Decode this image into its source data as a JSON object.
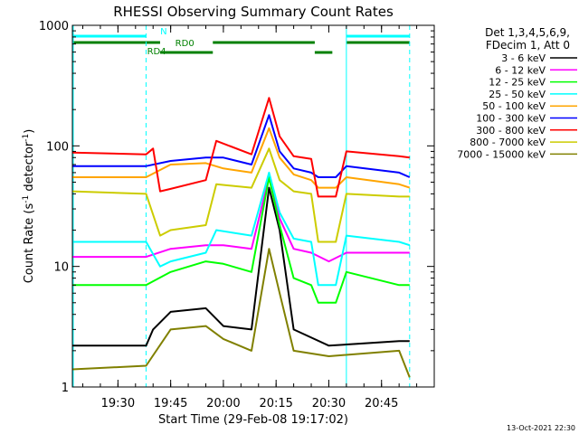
{
  "chart_data": {
    "type": "line",
    "title": "RHESSI Observing Summary Count Rates",
    "xlabel": "Start Time (29-Feb-08 19:17:02)",
    "ylabel_main": "Count Rate (s",
    "ylabel_sup1": "-1",
    "ylabel_mid": " detector",
    "ylabel_sup2": "-1",
    "ylabel_end": ")",
    "yscale": "log",
    "xlim": [
      "19:17:02",
      "21:00:00"
    ],
    "ylim": [
      1,
      1000
    ],
    "x_ticks": [
      "19:30",
      "19:45",
      "20:00",
      "20:15",
      "20:30",
      "20:45"
    ],
    "y_tick_labels": [
      "1",
      "10",
      "100",
      "1000"
    ],
    "legend": {
      "header1": "Det 1,3,4,5,6,9,",
      "header2": "FDecim 1, Att 0",
      "position": "right"
    },
    "series": [
      {
        "name": "3 - 6 keV",
        "color": "#000000",
        "points": [
          [
            "19:17",
            2.2
          ],
          [
            "19:38",
            2.2
          ],
          [
            "19:40",
            3.0
          ],
          [
            "19:45",
            4.2
          ],
          [
            "19:55",
            4.5
          ],
          [
            "20:00",
            3.2
          ],
          [
            "20:08",
            3.0
          ],
          [
            "20:13",
            45
          ],
          [
            "20:16",
            20
          ],
          [
            "20:20",
            3.0
          ],
          [
            "20:30",
            2.2
          ],
          [
            "20:50",
            2.4
          ],
          [
            "20:53",
            2.4
          ]
        ]
      },
      {
        "name": "6 - 12 keV",
        "color": "#ff00ff",
        "points": [
          [
            "19:17",
            12
          ],
          [
            "19:38",
            12
          ],
          [
            "19:45",
            14
          ],
          [
            "19:55",
            15
          ],
          [
            "20:00",
            15
          ],
          [
            "20:08",
            14
          ],
          [
            "20:13",
            55
          ],
          [
            "20:16",
            25
          ],
          [
            "20:20",
            14
          ],
          [
            "20:25",
            13
          ],
          [
            "20:30",
            11
          ],
          [
            "20:35",
            13
          ],
          [
            "20:50",
            13
          ],
          [
            "20:53",
            13
          ]
        ]
      },
      {
        "name": "12 - 25 keV",
        "color": "#00ff00",
        "points": [
          [
            "19:17",
            7
          ],
          [
            "19:38",
            7
          ],
          [
            "19:45",
            9
          ],
          [
            "19:55",
            11
          ],
          [
            "20:00",
            10.5
          ],
          [
            "20:08",
            9
          ],
          [
            "20:13",
            55
          ],
          [
            "20:16",
            22
          ],
          [
            "20:20",
            8
          ],
          [
            "20:25",
            7
          ],
          [
            "20:27",
            5
          ],
          [
            "20:32",
            5
          ],
          [
            "20:35",
            9
          ],
          [
            "20:50",
            7
          ],
          [
            "20:53",
            7
          ]
        ]
      },
      {
        "name": "25 - 50 keV",
        "color": "#00ffff",
        "points": [
          [
            "19:17",
            16
          ],
          [
            "19:38",
            16
          ],
          [
            "19:42",
            10
          ],
          [
            "19:45",
            11
          ],
          [
            "19:55",
            13
          ],
          [
            "19:58",
            20
          ],
          [
            "20:08",
            18
          ],
          [
            "20:13",
            60
          ],
          [
            "20:16",
            28
          ],
          [
            "20:20",
            17
          ],
          [
            "20:25",
            16
          ],
          [
            "20:27",
            7
          ],
          [
            "20:32",
            7
          ],
          [
            "20:35",
            18
          ],
          [
            "20:50",
            16
          ],
          [
            "20:53",
            15
          ]
        ]
      },
      {
        "name": "50 - 100 keV",
        "color": "#ffa500",
        "points": [
          [
            "19:17",
            55
          ],
          [
            "19:38",
            55
          ],
          [
            "19:45",
            70
          ],
          [
            "19:55",
            72
          ],
          [
            "20:00",
            65
          ],
          [
            "20:08",
            60
          ],
          [
            "20:13",
            140
          ],
          [
            "20:16",
            80
          ],
          [
            "20:20",
            58
          ],
          [
            "20:25",
            52
          ],
          [
            "20:27",
            45
          ],
          [
            "20:32",
            45
          ],
          [
            "20:35",
            55
          ],
          [
            "20:50",
            48
          ],
          [
            "20:53",
            45
          ]
        ]
      },
      {
        "name": "100 - 300 keV",
        "color": "#0000ff",
        "points": [
          [
            "19:17",
            68
          ],
          [
            "19:38",
            68
          ],
          [
            "19:45",
            75
          ],
          [
            "19:55",
            80
          ],
          [
            "20:00",
            80
          ],
          [
            "20:08",
            70
          ],
          [
            "20:13",
            180
          ],
          [
            "20:16",
            90
          ],
          [
            "20:20",
            65
          ],
          [
            "20:25",
            60
          ],
          [
            "20:27",
            55
          ],
          [
            "20:32",
            55
          ],
          [
            "20:35",
            68
          ],
          [
            "20:50",
            60
          ],
          [
            "20:53",
            55
          ]
        ]
      },
      {
        "name": "300 - 800 keV",
        "color": "#ff0000",
        "points": [
          [
            "19:17",
            88
          ],
          [
            "19:38",
            85
          ],
          [
            "19:40",
            95
          ],
          [
            "19:42",
            42
          ],
          [
            "19:45",
            44
          ],
          [
            "19:55",
            52
          ],
          [
            "19:58",
            110
          ],
          [
            "20:08",
            85
          ],
          [
            "20:13",
            250
          ],
          [
            "20:16",
            120
          ],
          [
            "20:20",
            82
          ],
          [
            "20:25",
            78
          ],
          [
            "20:27",
            38
          ],
          [
            "20:32",
            38
          ],
          [
            "20:35",
            90
          ],
          [
            "20:50",
            82
          ],
          [
            "20:53",
            80
          ]
        ]
      },
      {
        "name": "800 - 7000 keV",
        "color": "#cccc00",
        "points": [
          [
            "19:17",
            42
          ],
          [
            "19:38",
            40
          ],
          [
            "19:42",
            18
          ],
          [
            "19:45",
            20
          ],
          [
            "19:55",
            22
          ],
          [
            "19:58",
            48
          ],
          [
            "20:08",
            45
          ],
          [
            "20:13",
            95
          ],
          [
            "20:16",
            52
          ],
          [
            "20:20",
            42
          ],
          [
            "20:25",
            40
          ],
          [
            "20:27",
            16
          ],
          [
            "20:32",
            16
          ],
          [
            "20:35",
            40
          ],
          [
            "20:50",
            38
          ],
          [
            "20:53",
            38
          ]
        ]
      },
      {
        "name": "7000 - 15000 keV",
        "color": "#808000",
        "points": [
          [
            "19:17",
            1.4
          ],
          [
            "19:38",
            1.5
          ],
          [
            "19:45",
            3.0
          ],
          [
            "19:55",
            3.2
          ],
          [
            "20:00",
            2.5
          ],
          [
            "20:08",
            2.0
          ],
          [
            "20:13",
            14
          ],
          [
            "20:16",
            6
          ],
          [
            "20:20",
            2.0
          ],
          [
            "20:30",
            1.8
          ],
          [
            "20:50",
            2.0
          ],
          [
            "20:53",
            1.2
          ]
        ]
      }
    ],
    "flags": [
      {
        "label": "N",
        "color": "#00ffff",
        "segments": [
          [
            "19:17",
            "19:38"
          ],
          [
            "20:35",
            "20:53"
          ]
        ]
      },
      {
        "label": "RD0",
        "color": "#008000",
        "segments": [
          [
            "19:17",
            "19:42"
          ],
          [
            "19:57",
            "20:26"
          ],
          [
            "20:35",
            "20:53"
          ]
        ]
      },
      {
        "label": "RD4",
        "color": "#008000",
        "segments": [
          [
            "19:42",
            "19:57"
          ],
          [
            "20:26",
            "20:31"
          ]
        ]
      }
    ],
    "footer": "13-Oct-2021 22:30"
  }
}
